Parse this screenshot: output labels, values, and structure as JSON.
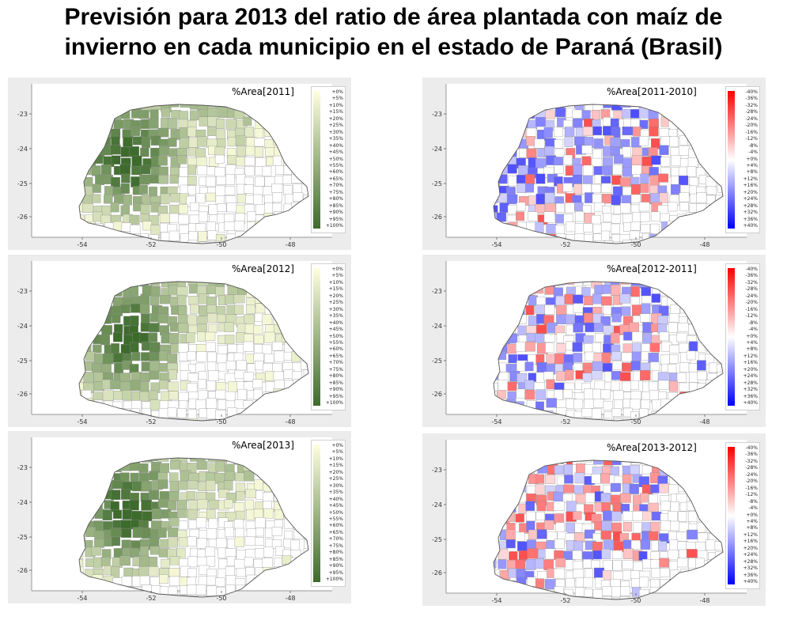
{
  "title_line1": "Previsión para 2013 del ratio de área plantada con maíz de",
  "title_line2": "invierno en cada municipio en el estado de Paraná (Brasil)",
  "x_ticks": [
    "-54",
    "-52",
    "-50",
    "-48"
  ],
  "y_ticks": [
    "-23",
    "-24",
    "-25",
    "-26"
  ],
  "legend_area": [
    "+0%",
    "+5%",
    "+10%",
    "+15%",
    "+20%",
    "+25%",
    "+30%",
    "+35%",
    "+40%",
    "+45%",
    "+50%",
    "+55%",
    "+60%",
    "+65%",
    "+70%",
    "+75%",
    "+80%",
    "+85%",
    "+90%",
    "+95%",
    "+100%"
  ],
  "legend_diff": [
    "-40%",
    "-36%",
    "-32%",
    "-28%",
    "-24%",
    "-20%",
    "-16%",
    "-12%",
    "-8%",
    "-4%",
    "+0%",
    "+4%",
    "+8%",
    "+12%",
    "+16%",
    "+20%",
    "+24%",
    "+28%",
    "+32%",
    "+36%",
    "+40%"
  ],
  "colors": {
    "area_low": "#ffffe0",
    "area_high": "#3d6b2c",
    "diff_neg": "#ff0000",
    "diff_pos": "#0000ff",
    "panel_bg": "#ececec"
  },
  "panels": [
    {
      "label": "%Area[2011]",
      "type": "area"
    },
    {
      "label": "%Area[2011-2010]",
      "type": "diff"
    },
    {
      "label": "%Area[2012]",
      "type": "area"
    },
    {
      "label": "%Area[2012-2011]",
      "type": "diff"
    },
    {
      "label": "%Area[2013]",
      "type": "area"
    },
    {
      "label": "%Area[2013-2012]",
      "type": "diff"
    }
  ]
}
